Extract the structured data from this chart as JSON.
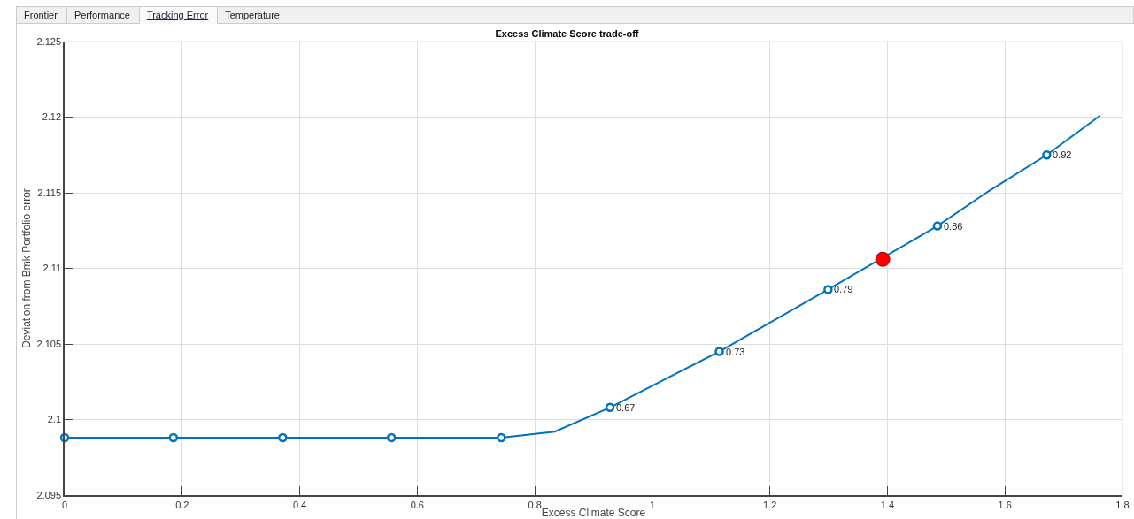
{
  "chart_data": {
    "type": "line",
    "title": "Excess Climate Score trade-off",
    "xlabel": "Excess Climate Score",
    "ylabel": "Deviation from Bmk Portfolio error",
    "annotations": [
      "Frontier",
      "Performance",
      "Tracking Error",
      "Temperature",
      {
        "text": "0.67",
        "x": 0.928,
        "y": 2.1008
      },
      {
        "text": "0.73",
        "x": 1.114,
        "y": 2.1045
      },
      {
        "text": "0.79",
        "x": 1.299,
        "y": 2.1086
      },
      {
        "text": "0.86",
        "x": 1.485,
        "y": 2.1128
      },
      {
        "text": "0.92",
        "x": 1.671,
        "y": 2.1175
      }
    ],
    "series": [
      {
        "color": "#0072bd",
        "marker": "none",
        "x": [
          0,
          0.185,
          0.371,
          0.556,
          0.743,
          0.834,
          0.928,
          1.114,
          1.299,
          1.485,
          1.572,
          1.671,
          1.762
        ],
        "values": [
          2.0988,
          2.0988,
          2.0988,
          2.0988,
          2.0988,
          2.0992,
          2.1008,
          2.1045,
          2.1086,
          2.1128,
          2.1151,
          2.1175,
          2.1201
        ]
      },
      {
        "type": "scatter",
        "color": "#0072bd",
        "marker": "circle",
        "x": [
          0,
          0.185,
          0.371,
          0.556,
          0.743,
          0.928,
          1.114,
          1.299,
          1.485,
          1.671
        ],
        "values": [
          2.0988,
          2.0988,
          2.0988,
          2.0988,
          2.0988,
          2.1008,
          2.1045,
          2.1086,
          2.1128,
          2.1175
        ]
      },
      {
        "type": "scatter",
        "color": "#ff0000",
        "marker": "circle",
        "x": [
          1.392
        ],
        "values": [
          2.1106
        ]
      }
    ],
    "xlim": [
      0,
      1.8
    ],
    "xticks": [
      0,
      0.2,
      0.4,
      0.6,
      0.8,
      1,
      1.2,
      1.4,
      1.6,
      1.8
    ],
    "ylim": [
      2.095,
      2.125
    ],
    "yticks": [
      2.095,
      2.1,
      2.105,
      2.11,
      2.115,
      2.12,
      2.125
    ],
    "grid": true,
    "legend": false
  }
}
